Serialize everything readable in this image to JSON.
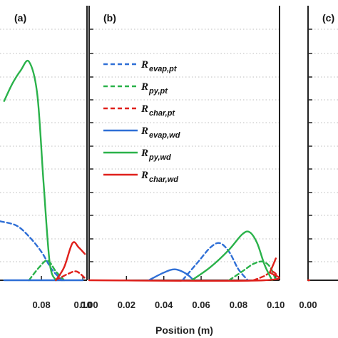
{
  "chart_data": [
    {
      "panel": "(a)",
      "type": "line",
      "xlabel": "",
      "xticks": [
        "0.08",
        "0.10"
      ],
      "series": [
        {
          "name": "R evap,pt",
          "color": "#2f6fd6",
          "dash": true,
          "x": [
            0.06,
            0.068,
            0.074,
            0.08,
            0.085,
            0.09
          ],
          "y": [
            0.27,
            0.25,
            0.2,
            0.13,
            0.05,
            0.0
          ]
        },
        {
          "name": "R py,pt",
          "color": "#2ab24a",
          "dash": true,
          "x": [
            0.074,
            0.079,
            0.083,
            0.087,
            0.091
          ],
          "y": [
            0.0,
            0.06,
            0.09,
            0.04,
            0.0
          ]
        },
        {
          "name": "R char,pt",
          "color": "#e0201b",
          "dash": true,
          "x": [
            0.087,
            0.093,
            0.097,
            0.101
          ],
          "y": [
            0.0,
            0.03,
            0.04,
            0.01
          ]
        },
        {
          "name": "R evap,wd",
          "color": "#2f6fd6",
          "dash": false,
          "x": [
            0.062,
            0.1
          ],
          "y": [
            0.0,
            0.0
          ]
        },
        {
          "name": "R py,wd",
          "color": "#2ab24a",
          "dash": false,
          "x": [
            0.062,
            0.066,
            0.07,
            0.074,
            0.078,
            0.081,
            0.084,
            0.087
          ],
          "y": [
            0.82,
            0.9,
            0.96,
            1.0,
            0.85,
            0.45,
            0.08,
            0.0
          ]
        },
        {
          "name": "R char,wd",
          "color": "#e0201b",
          "dash": false,
          "x": [
            0.087,
            0.091,
            0.095,
            0.098,
            0.101
          ],
          "y": [
            0.0,
            0.06,
            0.17,
            0.15,
            0.12
          ]
        }
      ]
    },
    {
      "panel": "(b)",
      "type": "line",
      "xlabel": "Position (m)",
      "xticks": [
        "0.00",
        "0.02",
        "0.04",
        "0.06",
        "0.08",
        "0.10"
      ],
      "series": [
        {
          "name": "R evap,pt",
          "color": "#2f6fd6",
          "dash": true,
          "x": [
            0.05,
            0.058,
            0.065,
            0.07,
            0.075,
            0.08,
            0.085
          ],
          "y": [
            0.0,
            0.08,
            0.15,
            0.17,
            0.13,
            0.05,
            0.0
          ]
        },
        {
          "name": "R py,pt",
          "color": "#2ab24a",
          "dash": true,
          "x": [
            0.075,
            0.082,
            0.088,
            0.093,
            0.097,
            0.1
          ],
          "y": [
            0.0,
            0.04,
            0.075,
            0.085,
            0.06,
            0.0
          ]
        },
        {
          "name": "R char,pt",
          "color": "#e0201b",
          "dash": true,
          "x": [
            0.088,
            0.094,
            0.098,
            0.101
          ],
          "y": [
            0.0,
            0.02,
            0.04,
            0.02
          ]
        },
        {
          "name": "R evap,wd",
          "color": "#2f6fd6",
          "dash": false,
          "x": [
            0.032,
            0.04,
            0.046,
            0.052,
            0.056
          ],
          "y": [
            0.0,
            0.035,
            0.05,
            0.03,
            0.0
          ]
        },
        {
          "name": "R py,wd",
          "color": "#2ab24a",
          "dash": false,
          "x": [
            0.055,
            0.065,
            0.075,
            0.082,
            0.086,
            0.09,
            0.094,
            0.098
          ],
          "y": [
            0.0,
            0.06,
            0.14,
            0.21,
            0.22,
            0.17,
            0.07,
            0.0
          ]
        },
        {
          "name": "R char,wd",
          "color": "#e0201b",
          "dash": false,
          "x": [
            0.0,
            0.094,
            0.097,
            0.1
          ],
          "y": [
            0.0,
            0.0,
            0.04,
            0.1
          ]
        }
      ],
      "legend": [
        {
          "main": "R",
          "sub": "evap,pt",
          "color": "#2f6fd6",
          "dash": true
        },
        {
          "main": "R",
          "sub": "py,pt",
          "color": "#2ab24a",
          "dash": true
        },
        {
          "main": "R",
          "sub": "char,pt",
          "color": "#e0201b",
          "dash": true
        },
        {
          "main": "R",
          "sub": "evap,wd",
          "color": "#2f6fd6",
          "dash": false
        },
        {
          "main": "R",
          "sub": "py,wd",
          "color": "#2ab24a",
          "dash": false
        },
        {
          "main": "R",
          "sub": "char,wd",
          "color": "#e0201b",
          "dash": false
        }
      ]
    },
    {
      "panel": "(c)",
      "type": "line",
      "xlabel": "",
      "xticks": [
        "0.00"
      ],
      "series": [
        {
          "name": "R evap,pt",
          "color": "#2f6fd6",
          "dash": true,
          "x": [
            0.0,
            0.004
          ],
          "y": [
            0.0,
            0.0
          ]
        },
        {
          "name": "R py,pt",
          "color": "#2ab24a",
          "dash": true,
          "x": [
            0.0,
            0.004
          ],
          "y": [
            0.0,
            0.0
          ]
        },
        {
          "name": "R char,pt",
          "color": "#e0201b",
          "dash": false,
          "x": [
            0.0,
            0.004
          ],
          "y": [
            0.0,
            0.0
          ]
        }
      ]
    }
  ]
}
